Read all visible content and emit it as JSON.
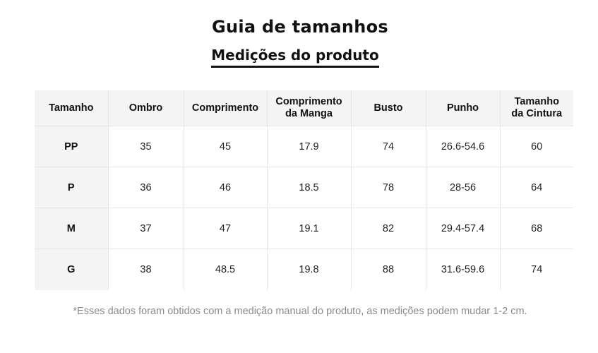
{
  "title": "Guia de tamanhos",
  "subtitle": "Medições do produto",
  "table": {
    "headers": [
      [
        "Tamanho"
      ],
      [
        "Ombro"
      ],
      [
        "Comprimento"
      ],
      [
        "Comprimento",
        "da Manga"
      ],
      [
        "Busto"
      ],
      [
        "Punho"
      ],
      [
        "Tamanho",
        "da Cintura"
      ]
    ],
    "rows": [
      [
        "PP",
        "35",
        "45",
        "17.9",
        "74",
        "26.6-54.6",
        "60"
      ],
      [
        "P",
        "36",
        "46",
        "18.5",
        "78",
        "28-56",
        "64"
      ],
      [
        "M",
        "37",
        "47",
        "19.1",
        "82",
        "29.4-57.4",
        "68"
      ],
      [
        "G",
        "38",
        "48.5",
        "19.8",
        "88",
        "31.6-59.6",
        "74"
      ]
    ]
  },
  "note": "*Esses dados foram obtidos com a medição manual do produto, as medições podem mudar 1-2 cm.",
  "colors": {
    "text": "#111111",
    "header_bg": "#f4f4f4",
    "border": "#e6e6e6",
    "note": "#8a8a8a"
  }
}
